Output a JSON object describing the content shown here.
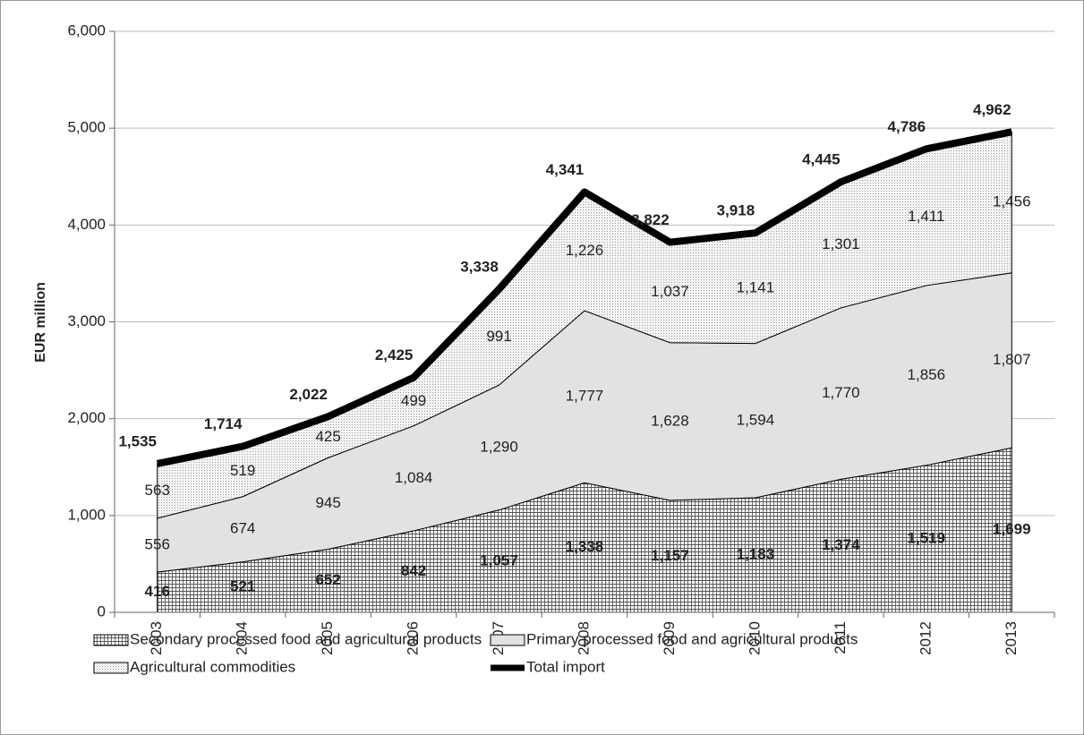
{
  "chart_data": {
    "type": "stacked-area-line",
    "y_label": "EUR million",
    "categories": [
      "2003",
      "2004",
      "2005",
      "2006",
      "2007",
      "2008",
      "2009",
      "2010",
      "2011",
      "2012",
      "2013"
    ],
    "ylim": [
      0,
      6000
    ],
    "yticks": [
      0,
      {
        "value": 1000,
        "label": "1,000"
      },
      {
        "value": 2000,
        "label": "2,000"
      },
      {
        "value": 3000,
        "label": "3,000"
      },
      {
        "value": 4000,
        "label": "4,000"
      },
      {
        "value": 5000,
        "label": "5,000"
      },
      {
        "value": 6000,
        "label": "6,000"
      }
    ],
    "grid": true,
    "legend": "bottom",
    "series": [
      {
        "name": "Secondary processed food and agricultural products",
        "kind": "area",
        "pattern": "grid",
        "color": "#555555",
        "values": [
          416,
          521,
          652,
          842,
          1057,
          1338,
          1157,
          1183,
          1374,
          1519,
          1699
        ],
        "value_labels": [
          "416",
          "521",
          "652",
          "842",
          "1,057",
          "1,338",
          "1,157",
          "1,183",
          "1,374",
          "1,519",
          "1,699"
        ]
      },
      {
        "name": "Primary processed food and agricultural products",
        "kind": "area",
        "pattern": "solid",
        "color": "#e2e2e2",
        "values": [
          556,
          674,
          945,
          1084,
          1290,
          1777,
          1628,
          1594,
          1770,
          1856,
          1807
        ],
        "value_labels": [
          "556",
          "674",
          "945",
          "1,084",
          "1,290",
          "1,777",
          "1,628",
          "1,594",
          "1,770",
          "1,856",
          "1,807"
        ]
      },
      {
        "name": "Agricultural commodities",
        "kind": "area",
        "pattern": "dots",
        "color": "#9a9a9a",
        "values": [
          563,
          519,
          425,
          499,
          991,
          1226,
          1037,
          1141,
          1301,
          1411,
          1456
        ],
        "value_labels": [
          "563",
          "519",
          "425",
          "499",
          "991",
          "1,226",
          "1,037",
          "1,141",
          "1,301",
          "1,411",
          "1,456"
        ]
      },
      {
        "name": "Total import",
        "kind": "line",
        "color": "#000000",
        "values": [
          1535,
          1714,
          2022,
          2425,
          3338,
          4341,
          3822,
          3918,
          4445,
          4786,
          4962
        ],
        "value_labels": [
          "1,535",
          "1,714",
          "2,022",
          "2,425",
          "3,338",
          "4,341",
          "3,822",
          "3,918",
          "4,445",
          "4,786",
          "4,962"
        ]
      }
    ]
  }
}
